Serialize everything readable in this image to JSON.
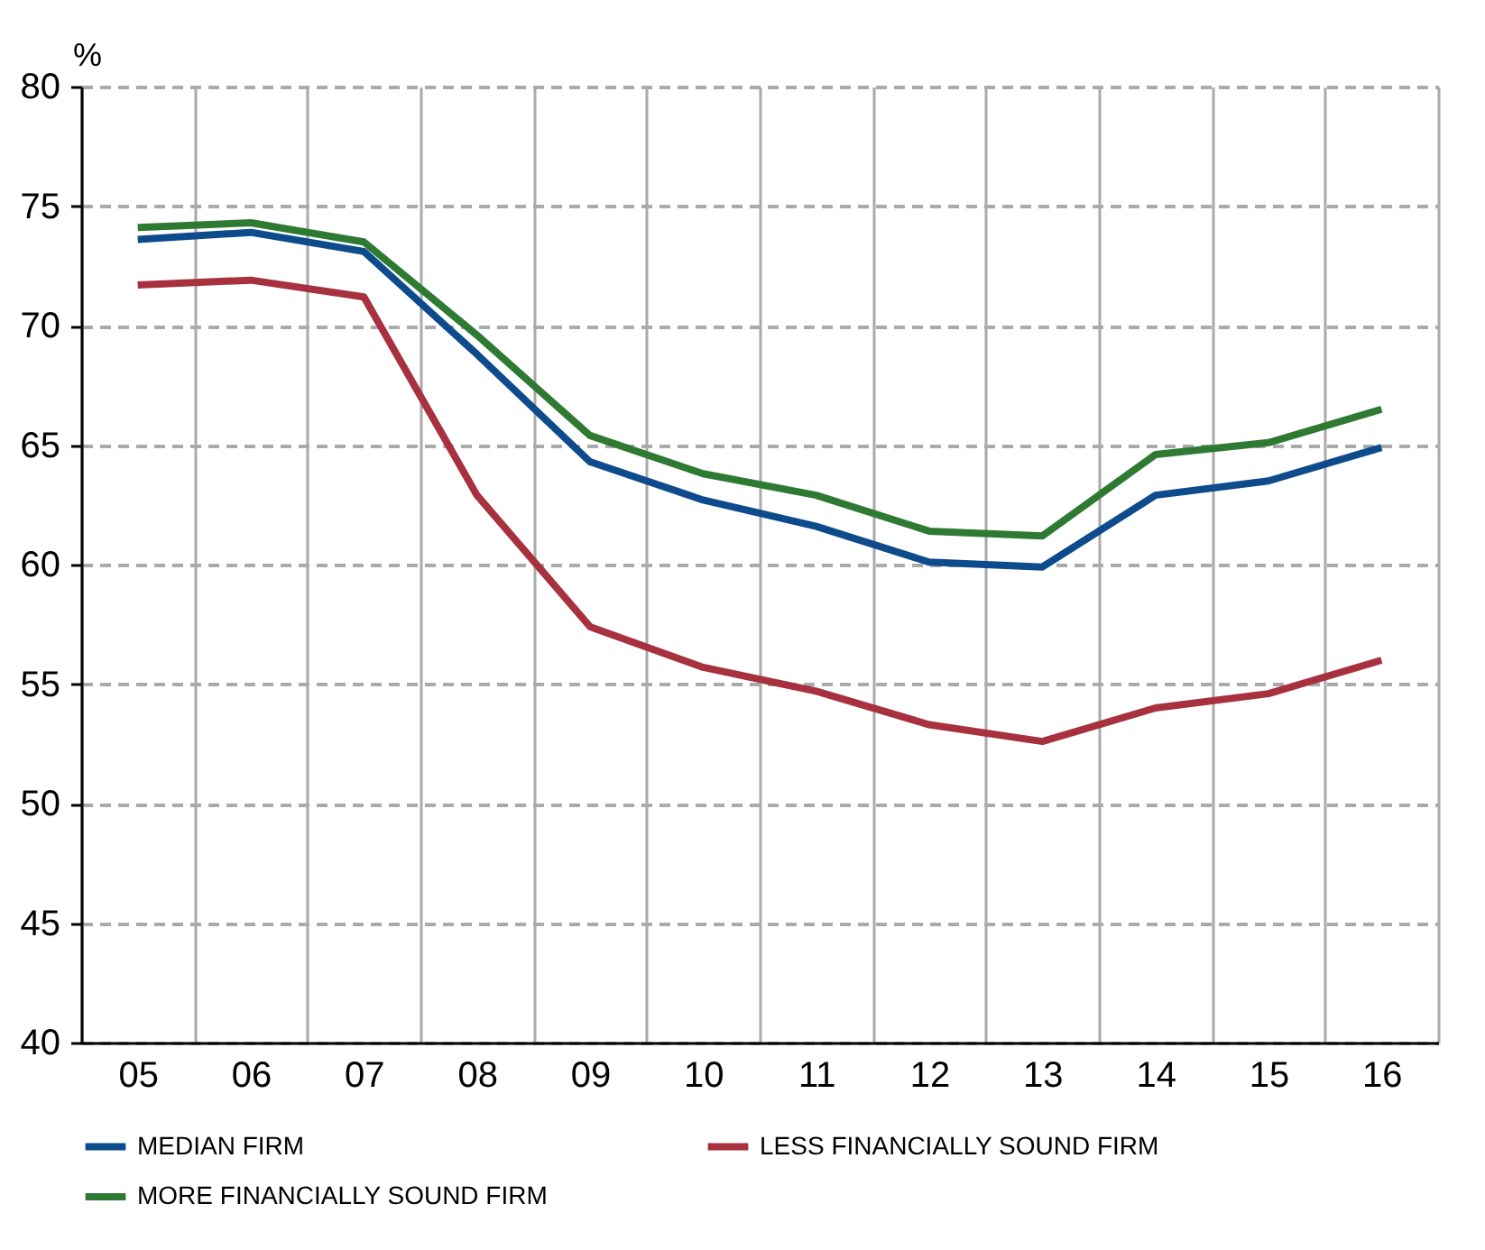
{
  "chart_data": {
    "type": "line",
    "ylabel": "%",
    "categories": [
      "05",
      "06",
      "07",
      "08",
      "09",
      "10",
      "11",
      "12",
      "13",
      "14",
      "15",
      "16"
    ],
    "series": [
      {
        "name": "MEDIAN FIRM",
        "color": "#0d4b8c",
        "values": [
          73.6,
          73.9,
          73.1,
          68.8,
          64.3,
          62.7,
          61.6,
          60.1,
          59.9,
          62.9,
          63.5,
          64.9
        ]
      },
      {
        "name": "LESS FINANCIALLY SOUND FIRM",
        "color": "#a8313f",
        "values": [
          71.7,
          71.9,
          71.2,
          62.9,
          57.4,
          55.7,
          54.7,
          53.3,
          52.6,
          54.0,
          54.6,
          56.0
        ]
      },
      {
        "name": "MORE FINANCIALLY SOUND FIRM",
        "color": "#2e7a32",
        "values": [
          74.1,
          74.3,
          73.5,
          69.6,
          65.4,
          63.8,
          62.9,
          61.4,
          61.2,
          64.6,
          65.1,
          66.5
        ]
      }
    ],
    "ylim": [
      40,
      80
    ],
    "yticks": [
      40,
      45,
      50,
      55,
      60,
      65,
      70,
      75,
      80
    ],
    "grid": true,
    "legend": "bottom",
    "line_style": "solid",
    "marker": "none"
  }
}
